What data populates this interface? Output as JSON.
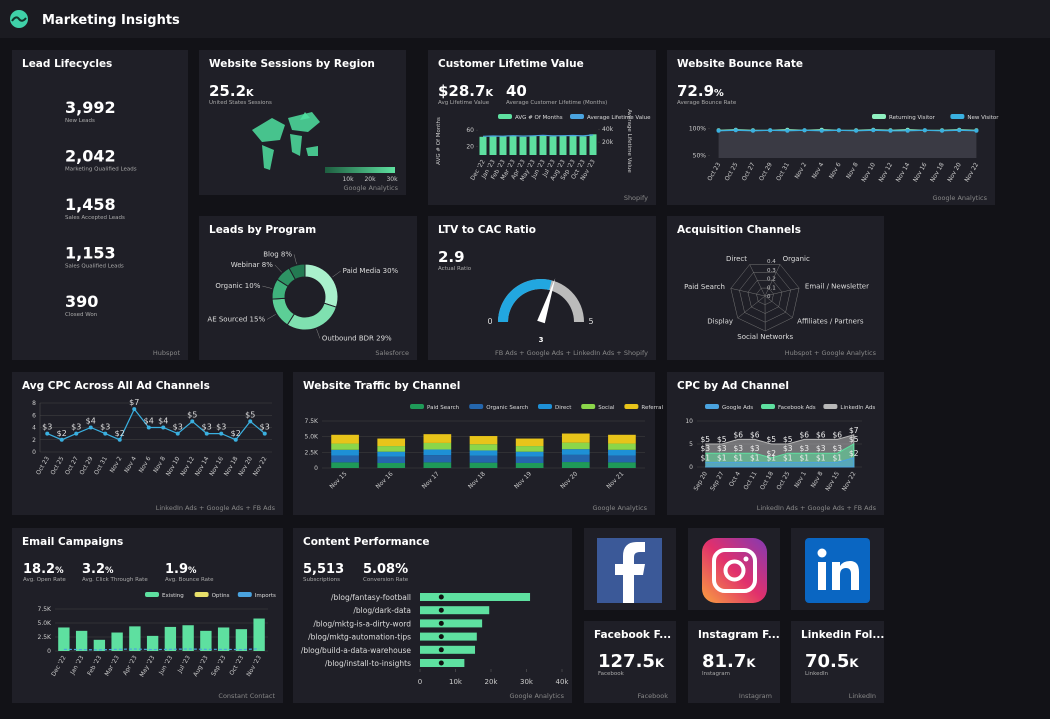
{
  "header": {
    "title": "Marketing Insights"
  },
  "lead_lifecycles": {
    "title": "Lead Lifecycles",
    "kpis": [
      {
        "value": "3,992",
        "label": "New Leads"
      },
      {
        "value": "2,042",
        "label": "Marketing Qualified Leads"
      },
      {
        "value": "1,458",
        "label": "Sales Accepted Leads"
      },
      {
        "value": "1,153",
        "label": "Sales Qualified Leads"
      },
      {
        "value": "390",
        "label": "Closed Won"
      }
    ],
    "source": "Hubspot"
  },
  "sessions": {
    "title": "Website Sessions by Region",
    "kpi": {
      "value": "25.2",
      "unit": "K",
      "label": "United States Sessions"
    },
    "scale_labels": [
      "10k",
      "20k",
      "30k"
    ],
    "source": "Google Analytics"
  },
  "clv": {
    "title": "Customer Lifetime Value",
    "kpis": [
      {
        "value": "$28.7",
        "unit": "K",
        "label": "Avg Lifetime Value"
      },
      {
        "value": 40,
        "label": "Average Customer Lifetime (Months)"
      }
    ],
    "chart": {
      "type": "bar",
      "ylabel": "AVG # Of Months",
      "y2label": "Average Lifetime Value",
      "categories": [
        "Dec '22",
        "Jan '23",
        "Feb '23",
        "Mar '23",
        "Apr '23",
        "May '23",
        "Jun '23",
        "Jul '23",
        "Aug '23",
        "Sep '23",
        "Oct '23",
        "Nov '23"
      ],
      "series": [
        {
          "name": "AVG # Of Months",
          "color": "#5ee0a0",
          "values": [
            44,
            46,
            45,
            47,
            44,
            46,
            48,
            45,
            46,
            47,
            45,
            50
          ]
        },
        {
          "name": "Average Lifetime Value",
          "color": "#4aa3df",
          "axis": "y2",
          "values": [
            29000,
            29500,
            29200,
            30000,
            29400,
            29800,
            30500,
            29600,
            29900,
            30200,
            29700,
            31000
          ]
        }
      ],
      "ylim": [
        0,
        70
      ],
      "yticks": [
        20,
        60
      ],
      "y2lim": [
        0,
        45000
      ],
      "y2ticks": [
        {
          "value": 20000,
          "label": "20k"
        },
        {
          "value": 40000,
          "label": "40k"
        }
      ]
    },
    "source": "Shopify"
  },
  "bounce": {
    "title": "Website Bounce Rate",
    "kpi": {
      "value": "72.9",
      "unit": "%",
      "label": "Average Bounce Rate"
    },
    "chart": {
      "type": "line",
      "categories": [
        "Oct 23",
        "Oct 25",
        "Oct 27",
        "Oct 29",
        "Oct 31",
        "Nov 2",
        "Nov 4",
        "Nov 6",
        "Nov 8",
        "Nov 10",
        "Nov 12",
        "Nov 14",
        "Nov 16",
        "Nov 18",
        "Nov 20",
        "Nov 22"
      ],
      "series": [
        {
          "name": "Returning Visitor",
          "color": "#8ff0c0",
          "values": [
            97,
            98,
            97,
            97,
            98,
            97,
            98,
            97,
            97,
            98,
            97,
            98,
            97,
            97,
            98,
            97
          ]
        },
        {
          "name": "New Visitor",
          "color": "#3ab0e0",
          "values": [
            96,
            97,
            96,
            97,
            96,
            97,
            96,
            97,
            96,
            97,
            96,
            96,
            97,
            96,
            97,
            96
          ]
        }
      ],
      "ylim": [
        45,
        105
      ],
      "yticks": [
        {
          "value": 50,
          "label": "50%"
        },
        {
          "value": 100,
          "label": "100%"
        }
      ]
    },
    "source": "Google Analytics"
  },
  "programs": {
    "title": "Leads by Program",
    "chart": {
      "type": "pie",
      "labels": [
        "Paid Media 30%",
        "Outbound BDR 29%",
        "AE Sourced 15%",
        "Organic 10%",
        "Webinar 8%",
        "Blog 8%"
      ],
      "values": [
        30,
        29,
        15,
        10,
        8,
        8
      ],
      "colors": [
        "#a9f0cc",
        "#7fe0b0",
        "#5ccf96",
        "#3fb27c",
        "#2e9464",
        "#237a52"
      ]
    },
    "source": "Salesforce"
  },
  "ltv": {
    "title": "LTV to CAC Ratio",
    "kpi": {
      "value": 2.9,
      "label": "Actual Ratio"
    },
    "gauge": {
      "min": 0,
      "max": 5,
      "target": 3
    },
    "source": "FB Ads + Google Ads + LinkedIn Ads + Shopify"
  },
  "acq": {
    "title": "Acquisition Channels",
    "chart": {
      "type": "radar",
      "axes": [
        "Direct",
        "Organic",
        "Email / Newsletter",
        "Affiliates / Partners",
        "Social Networks",
        "Display",
        "Paid Search"
      ],
      "rlim": [
        0,
        0.4
      ],
      "rticks": [
        0,
        0.1,
        0.2,
        0.3,
        0.4
      ]
    },
    "source": "Hubspot + Google Analytics"
  },
  "cpc": {
    "title": "Avg CPC Across All Ad Channels",
    "chart": {
      "type": "line",
      "categories": [
        "Oct 23",
        "Oct 25",
        "Oct 27",
        "Oct 29",
        "Oct 31",
        "Nov 2",
        "Nov 4",
        "Nov 6",
        "Nov 8",
        "Nov 10",
        "Nov 12",
        "Nov 14",
        "Nov 16",
        "Nov 18",
        "Nov 20",
        "Nov 22"
      ],
      "values": [
        3,
        2,
        3,
        4,
        3,
        2,
        7,
        4,
        4,
        3,
        5,
        3,
        3,
        2,
        5,
        3
      ],
      "value_labels": [
        "$3",
        "$2",
        "$3",
        "$4",
        "$3",
        "$2",
        "$7",
        "$4",
        "$4",
        "$3",
        "$5",
        "$3",
        "$3",
        "$2",
        "$5",
        "$3"
      ],
      "color": "#3ab0e0",
      "ylim": [
        0,
        8
      ],
      "yticks": [
        0,
        2,
        4,
        6,
        8
      ]
    },
    "source": "LinkedIn Ads + Google Ads + FB Ads"
  },
  "traffic": {
    "title": "Website Traffic by Channel",
    "chart": {
      "type": "stacked-bar",
      "categories": [
        "Nov 15",
        "Nov 16",
        "Nov 17",
        "Nov 18",
        "Nov 19",
        "Nov 20",
        "Nov 21"
      ],
      "series": [
        {
          "name": "Paid Search",
          "color": "#1f9a58",
          "values": [
            900,
            800,
            900,
            850,
            800,
            950,
            900
          ]
        },
        {
          "name": "Organic Search",
          "color": "#2466ad",
          "values": [
            1100,
            1000,
            1150,
            1100,
            1000,
            1150,
            1100
          ]
        },
        {
          "name": "Direct",
          "color": "#1e90d6",
          "values": [
            900,
            800,
            900,
            850,
            800,
            900,
            900
          ]
        },
        {
          "name": "Social",
          "color": "#8bd64a",
          "values": [
            1000,
            900,
            1050,
            1000,
            900,
            1050,
            1000
          ]
        },
        {
          "name": "Referral",
          "color": "#e8c41a",
          "values": [
            1400,
            1200,
            1400,
            1300,
            1200,
            1450,
            1400
          ]
        }
      ],
      "ylim": [
        0,
        7500
      ],
      "yticks": [
        0,
        {
          "value": 2500,
          "label": "2.5K"
        },
        {
          "value": 5000,
          "label": "5.0K"
        },
        {
          "value": 7500,
          "label": "7.5K"
        }
      ]
    },
    "source": "Google Analytics"
  },
  "cpc_channel": {
    "title": "CPC by Ad Channel",
    "chart": {
      "type": "area",
      "categories": [
        "Sep 20",
        "Sep 27",
        "Oct 4",
        "Oct 11",
        "Oct 18",
        "Oct 25",
        "Nov 1",
        "Nov 8",
        "Nov 15",
        "Nov 22"
      ],
      "series": [
        {
          "name": "Google Ads",
          "color": "#4aa3df",
          "values": [
            1,
            1,
            1,
            1,
            1,
            1,
            1,
            1,
            1,
            2
          ],
          "value_labels": [
            "$1",
            "$1",
            "$1",
            "$1",
            "$1",
            "$1",
            "$1",
            "$1",
            "$1",
            "$2"
          ]
        },
        {
          "name": "Facebook Ads",
          "color": "#5ee0a0",
          "values": [
            3,
            3,
            3,
            3,
            2,
            3,
            3,
            3,
            3,
            5
          ],
          "value_labels": [
            "$3",
            "$3",
            "$3",
            "$3",
            "$2",
            "$3",
            "$3",
            "$3",
            "$3",
            "$5"
          ]
        },
        {
          "name": "LinkedIn Ads",
          "color": "#b8b8b8",
          "values": [
            5,
            5,
            6,
            6,
            5,
            5,
            6,
            6,
            6,
            7
          ],
          "value_labels": [
            "$5",
            "$5",
            "$6",
            "$6",
            "$5",
            "$5",
            "$6",
            "$6",
            "$6",
            "$7"
          ]
        }
      ],
      "ylim": [
        0,
        10
      ],
      "yticks": [
        0,
        5,
        10
      ]
    },
    "source": "LinkedIn Ads + Google Ads + FB Ads"
  },
  "email": {
    "title": "Email Campaigns",
    "kpis": [
      {
        "value": "18.2",
        "unit": "%",
        "label": "Avg. Open Rate"
      },
      {
        "value": "3.2",
        "unit": "%",
        "label": "Avg. Click Through Rate"
      },
      {
        "value": "1.9",
        "unit": "%",
        "label": "Avg. Bounce Rate"
      }
    ],
    "chart": {
      "type": "bar",
      "categories": [
        "Dec '22",
        "Jan '23",
        "Feb '23",
        "Mar '23",
        "Apr '23",
        "May '23",
        "Jun '23",
        "Jul '23",
        "Aug '23",
        "Sep '23",
        "Oct '23",
        "Nov '23"
      ],
      "series": [
        {
          "name": "Existing",
          "color": "#5ee0a0",
          "values": [
            4200,
            3600,
            2000,
            3300,
            4400,
            2700,
            4300,
            4600,
            3600,
            4200,
            3900,
            5800
          ]
        },
        {
          "name": "Optins",
          "color": "#e8e06a",
          "values": [
            0,
            0,
            0,
            0,
            0,
            0,
            0,
            0,
            0,
            0,
            0,
            0
          ]
        },
        {
          "name": "Imports",
          "color": "#4aa3df",
          "values": [
            300,
            250,
            200,
            300,
            350,
            250,
            300,
            350,
            300,
            300,
            250,
            400
          ]
        }
      ],
      "ylim": [
        0,
        7500
      ],
      "yticks": [
        0,
        {
          "value": 2500,
          "label": "2.5K"
        },
        {
          "value": 5000,
          "label": "5.0K"
        },
        {
          "value": 7500,
          "label": "7.5K"
        }
      ]
    },
    "source": "Constant Contact"
  },
  "content": {
    "title": "Content Performance",
    "kpis": [
      {
        "value": "5,513",
        "label": "Subscriptions"
      },
      {
        "value": "5.08%",
        "label": "Conversion Rate"
      }
    ],
    "chart": {
      "type": "hbar",
      "categories": [
        "/blog/fantasy-football",
        "/blog/dark-data",
        "/blog/mktg-is-a-dirty-word",
        "/blog/mktg-automation-tips",
        "/blog/build-a-data-warehouse",
        "/blog/install-to-insights"
      ],
      "values": [
        31000,
        19500,
        17500,
        16000,
        15500,
        12500
      ],
      "marker_values": [
        6000,
        6000,
        6000,
        6000,
        6000,
        6000
      ],
      "color": "#5ee0a0",
      "xlim": [
        0,
        40000
      ],
      "xticks": [
        0,
        {
          "value": 10000,
          "label": "10k"
        },
        {
          "value": 20000,
          "label": "20k"
        },
        {
          "value": 30000,
          "label": "30k"
        },
        {
          "value": 40000,
          "label": "40k"
        }
      ]
    },
    "source": "Google Analytics"
  },
  "social": [
    {
      "title": "Facebook F...",
      "value": "127.5",
      "unit": "K",
      "label": "Facebook",
      "source": "Facebook"
    },
    {
      "title": "Instagram F...",
      "value": "81.7",
      "unit": "K",
      "label": "Instagram",
      "source": "Instagram"
    },
    {
      "title": "Linkedin Fol...",
      "value": "70.5",
      "unit": "K",
      "label": "LinkedIn",
      "source": "LinkedIn"
    }
  ]
}
